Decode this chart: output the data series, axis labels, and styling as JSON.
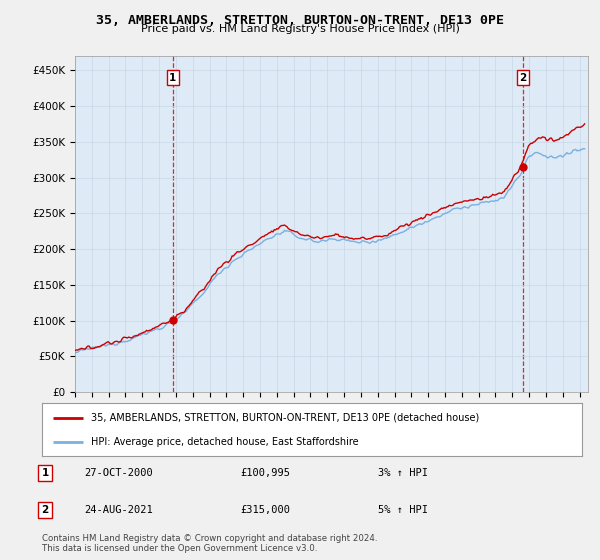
{
  "title": "35, AMBERLANDS, STRETTON, BURTON-ON-TRENT, DE13 0PE",
  "subtitle": "Price paid vs. HM Land Registry's House Price Index (HPI)",
  "ylabel_ticks": [
    0,
    50000,
    100000,
    150000,
    200000,
    250000,
    300000,
    350000,
    400000,
    450000
  ],
  "ylabel_labels": [
    "£0",
    "£50K",
    "£100K",
    "£150K",
    "£200K",
    "£250K",
    "£300K",
    "£350K",
    "£400K",
    "£450K"
  ],
  "xlim_start": 1995.0,
  "xlim_end": 2025.5,
  "ylim_min": 0,
  "ylim_max": 470000,
  "hpi_color": "#7ab0e0",
  "price_color": "#CC0000",
  "vline_color": "#CC0000",
  "plot_bg_color": "#deeaf5",
  "background_color": "#f0f0f0",
  "transaction1": {
    "year": 2000.82,
    "price": 100995,
    "label": "1",
    "date": "27-OCT-2000",
    "pct": "3%"
  },
  "transaction2": {
    "year": 2021.65,
    "price": 315000,
    "label": "2",
    "date": "24-AUG-2021",
    "pct": "5%"
  },
  "legend_line1": "35, AMBERLANDS, STRETTON, BURTON-ON-TRENT, DE13 0PE (detached house)",
  "legend_line2": "HPI: Average price, detached house, East Staffordshire",
  "footer": "Contains HM Land Registry data © Crown copyright and database right 2024.\nThis data is licensed under the Open Government Licence v3.0."
}
